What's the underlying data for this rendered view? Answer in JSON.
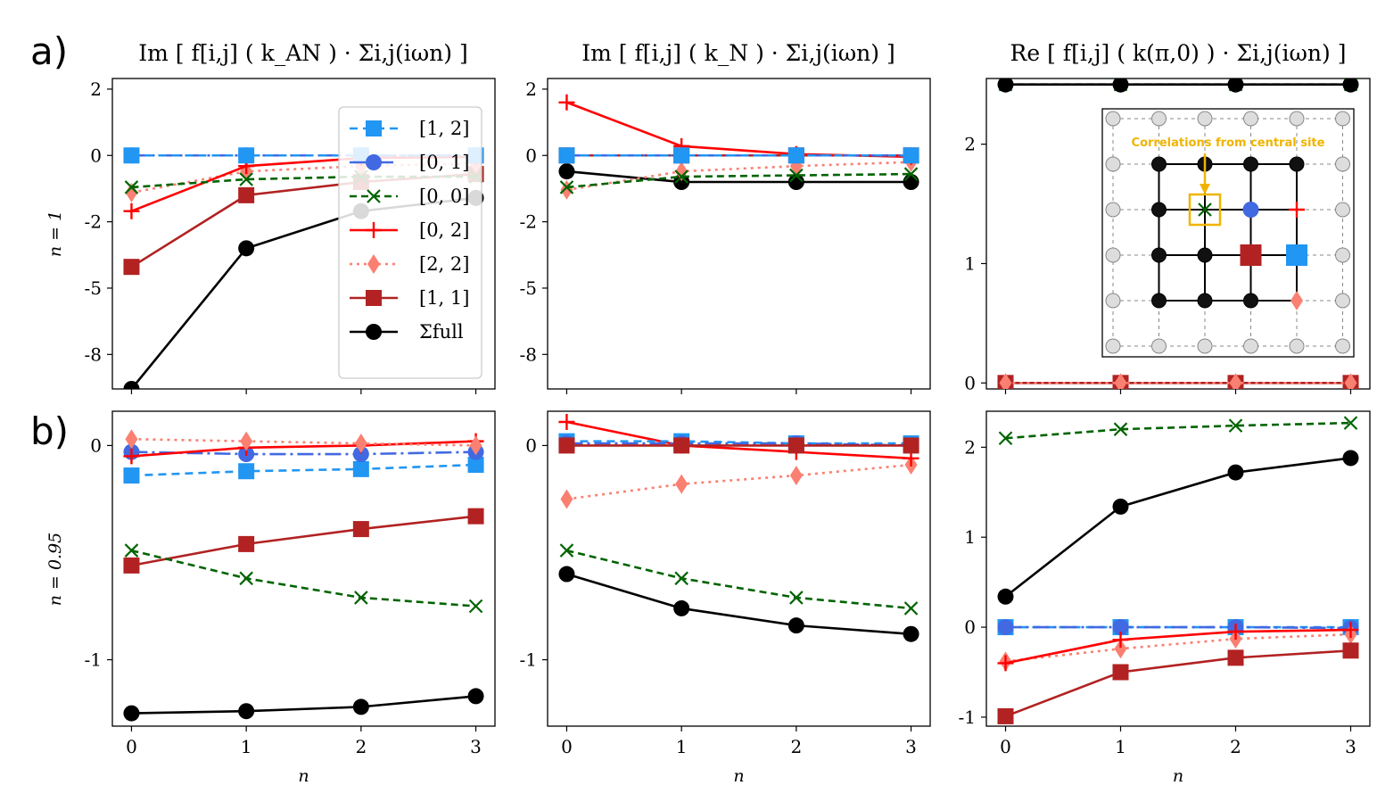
{
  "figure": {
    "row_labels": [
      "a)",
      "b)"
    ],
    "row_ylabels": [
      "n = 1",
      "n = 0.95"
    ],
    "column_titles": [
      "Im [ f[i,j] ( k_AN ) · Σi,j(iωn) ]",
      "Im [ f[i,j] ( k_N ) · Σi,j(iωn) ]",
      "Re [ f[i,j] ( k(π,0) ) · Σi,j(iωn) ]"
    ]
  },
  "legend": {
    "entries": [
      "[1, 2]",
      "[0, 1]",
      "[0, 0]",
      "[0, 2]",
      "[2, 2]",
      "[1, 1]",
      "Σfull"
    ]
  },
  "inset": {
    "label": "Correlations from central site"
  },
  "styles": {
    "[1, 2]": {
      "color": "#2196f3",
      "dash": "9,6",
      "marker": "square"
    },
    "[0, 1]": {
      "color": "#4169e1",
      "dash": "18,5,3,5",
      "marker": "circle"
    },
    "[0, 0]": {
      "color": "#006400",
      "dash": "8,5",
      "marker": "x"
    },
    "[0, 2]": {
      "color": "#ff0000",
      "dash": "",
      "marker": "plus"
    },
    "[2, 2]": {
      "color": "#fa8072",
      "dash": "3,5",
      "marker": "diamond"
    },
    "[1, 1]": {
      "color": "#b22222",
      "dash": "",
      "marker": "square"
    },
    "Σfull": {
      "color": "#000000",
      "dash": "",
      "marker": "circle"
    }
  },
  "chart_data": [
    {
      "type": "line",
      "panel": "a-left",
      "xlabel": "",
      "x": [
        0,
        1,
        2,
        3
      ],
      "xticks": [
        "0",
        "1",
        "2",
        "3"
      ],
      "yticks": [
        2.5,
        0,
        -2.5,
        -5,
        -7.5
      ],
      "yticklabels": [
        "2",
        "0",
        "-2",
        "-5",
        "-8"
      ],
      "ylim": [
        -8.8,
        2.9
      ],
      "series": [
        {
          "name": "Σfull",
          "values": [
            -8.8,
            -3.5,
            -2.1,
            -1.6
          ]
        },
        {
          "name": "[1, 1]",
          "values": [
            -4.2,
            -1.5,
            -1.0,
            -0.7
          ]
        },
        {
          "name": "[2, 2]",
          "values": [
            -1.4,
            -0.6,
            -0.4,
            -0.3
          ]
        },
        {
          "name": "[0, 2]",
          "values": [
            -2.1,
            -0.4,
            -0.1,
            -0.05
          ]
        },
        {
          "name": "[0, 0]",
          "values": [
            -1.2,
            -0.9,
            -0.8,
            -0.8
          ]
        },
        {
          "name": "[0, 1]",
          "values": [
            0,
            0,
            0,
            0
          ]
        },
        {
          "name": "[1, 2]",
          "values": [
            0,
            0,
            0,
            0
          ]
        }
      ]
    },
    {
      "type": "line",
      "panel": "a-middle",
      "xlabel": "",
      "x": [
        0,
        1,
        2,
        3
      ],
      "xticks": [
        "0",
        "1",
        "2",
        "3"
      ],
      "yticks": [
        2.5,
        0,
        -2.5,
        -5,
        -7.5
      ],
      "yticklabels": [
        "2",
        "0",
        "-2",
        "-5",
        "-8"
      ],
      "ylim": [
        -8.8,
        2.9
      ],
      "series": [
        {
          "name": "Σfull",
          "values": [
            -0.6,
            -1.0,
            -1.0,
            -1.0
          ]
        },
        {
          "name": "[1, 1]",
          "values": [
            0,
            0,
            0,
            0
          ]
        },
        {
          "name": "[2, 2]",
          "values": [
            -1.3,
            -0.6,
            -0.4,
            -0.25
          ]
        },
        {
          "name": "[0, 2]",
          "values": [
            2.0,
            0.35,
            0.05,
            -0.05
          ]
        },
        {
          "name": "[0, 0]",
          "values": [
            -1.2,
            -0.8,
            -0.75,
            -0.7
          ]
        },
        {
          "name": "[0, 1]",
          "values": [
            0,
            0,
            0,
            0
          ]
        },
        {
          "name": "[1, 2]",
          "values": [
            0,
            0,
            0,
            0
          ]
        }
      ]
    },
    {
      "type": "line",
      "panel": "a-right",
      "xlabel": "",
      "x": [
        0,
        1,
        2,
        3
      ],
      "xticks": [
        "0",
        "1",
        "2",
        "3"
      ],
      "yticks": [
        0,
        1,
        2
      ],
      "yticklabels": [
        "0",
        "1",
        "2"
      ],
      "ylim": [
        -0.05,
        2.55
      ],
      "series": [
        {
          "name": "[1, 1]",
          "values": [
            0,
            0,
            0,
            0
          ]
        },
        {
          "name": "[2, 2]",
          "values": [
            0,
            0,
            0,
            0
          ]
        },
        {
          "name": "[0, 0]",
          "values": [
            2.5,
            2.5,
            2.5,
            2.5
          ]
        },
        {
          "name": "Σfull",
          "values": [
            2.5,
            2.5,
            2.5,
            2.5
          ]
        }
      ]
    },
    {
      "type": "line",
      "panel": "b-left",
      "xlabel": "n",
      "x": [
        0,
        1,
        2,
        3
      ],
      "xticks": [
        "0",
        "1",
        "2",
        "3"
      ],
      "yticks": [
        0,
        -1
      ],
      "yticklabels": [
        "0",
        "-1"
      ],
      "ylim": [
        -1.31,
        0.16
      ],
      "series": [
        {
          "name": "Σfull",
          "values": [
            -1.25,
            -1.24,
            -1.22,
            -1.17
          ]
        },
        {
          "name": "[1, 1]",
          "values": [
            -0.56,
            -0.46,
            -0.39,
            -0.33
          ]
        },
        {
          "name": "[0, 0]",
          "values": [
            -0.49,
            -0.62,
            -0.71,
            -0.75
          ]
        },
        {
          "name": "[1, 2]",
          "values": [
            -0.14,
            -0.12,
            -0.11,
            -0.09
          ]
        },
        {
          "name": "[0, 1]",
          "values": [
            -0.03,
            -0.04,
            -0.04,
            -0.03
          ]
        },
        {
          "name": "[0, 2]",
          "values": [
            -0.05,
            -0.01,
            0.0,
            0.02
          ]
        },
        {
          "name": "[2, 2]",
          "values": [
            0.03,
            0.02,
            0.01,
            0.0
          ]
        }
      ]
    },
    {
      "type": "line",
      "panel": "b-middle",
      "xlabel": "n",
      "x": [
        0,
        1,
        2,
        3
      ],
      "xticks": [
        "0",
        "1",
        "2",
        "3"
      ],
      "yticks": [
        0,
        -1
      ],
      "yticklabels": [
        "0",
        "-1"
      ],
      "ylim": [
        -1.31,
        0.16
      ],
      "series": [
        {
          "name": "Σfull",
          "values": [
            -0.6,
            -0.76,
            -0.84,
            -0.88
          ]
        },
        {
          "name": "[0, 0]",
          "values": [
            -0.49,
            -0.62,
            -0.71,
            -0.76
          ]
        },
        {
          "name": "[2, 2]",
          "values": [
            -0.25,
            -0.18,
            -0.14,
            -0.09
          ]
        },
        {
          "name": "[0, 2]",
          "values": [
            0.11,
            0.0,
            -0.03,
            -0.06
          ]
        },
        {
          "name": "[1, 2]",
          "values": [
            0.02,
            0.02,
            0.01,
            0.01
          ]
        },
        {
          "name": "[0, 1]",
          "values": [
            0.01,
            0.01,
            0.01,
            0.0
          ]
        },
        {
          "name": "[1, 1]",
          "values": [
            0.0,
            0.0,
            0.0,
            0.0
          ]
        }
      ]
    },
    {
      "type": "line",
      "panel": "b-right",
      "xlabel": "n",
      "x": [
        0,
        1,
        2,
        3
      ],
      "xticks": [
        "0",
        "1",
        "2",
        "3"
      ],
      "yticks": [
        2,
        1,
        0,
        -1
      ],
      "yticklabels": [
        "2",
        "1",
        "0",
        "-1"
      ],
      "ylim": [
        -1.1,
        2.4
      ],
      "series": [
        {
          "name": "[0, 0]",
          "values": [
            2.1,
            2.2,
            2.24,
            2.27
          ]
        },
        {
          "name": "Σfull",
          "values": [
            0.34,
            1.34,
            1.72,
            1.88
          ]
        },
        {
          "name": "[1, 2]",
          "values": [
            0.0,
            0.0,
            0.0,
            0.0
          ]
        },
        {
          "name": "[0, 1]",
          "values": [
            0.0,
            0.0,
            0.0,
            -0.01
          ]
        },
        {
          "name": "[2, 2]",
          "values": [
            -0.38,
            -0.24,
            -0.13,
            -0.08
          ]
        },
        {
          "name": "[0, 2]",
          "values": [
            -0.4,
            -0.14,
            -0.05,
            -0.03
          ]
        },
        {
          "name": "[1, 1]",
          "values": [
            -0.99,
            -0.5,
            -0.34,
            -0.26
          ]
        }
      ]
    }
  ]
}
